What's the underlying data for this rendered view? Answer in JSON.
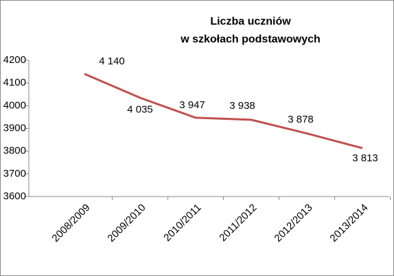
{
  "chart_data": {
    "type": "line",
    "title": [
      "Liczba uczniów",
      "w szkołach podstawowych"
    ],
    "categories": [
      "2008/2009",
      "2009/2010",
      "2010/2011",
      "2011/2012",
      "2012/2013",
      "2013/2014"
    ],
    "series": [
      {
        "name": "Liczba uczniów",
        "color": "#c0504d",
        "values": [
          4140,
          4035,
          3947,
          3938,
          3878,
          3813
        ],
        "value_labels": [
          "4 140",
          "4 035",
          "3 947",
          "3 938",
          "3 878",
          "3 813"
        ]
      }
    ],
    "ylim": [
      3600,
      4200
    ],
    "yticks": [
      3600,
      3700,
      3800,
      3900,
      4000,
      4100,
      4200
    ],
    "grid": false
  }
}
